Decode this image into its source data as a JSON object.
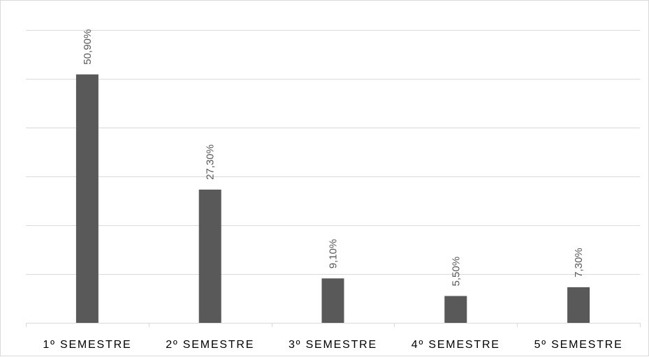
{
  "chart_data": {
    "type": "bar",
    "categories": [
      "1º SEMESTRE",
      "2º SEMESTRE",
      "3º SEMESTRE",
      "4º SEMESTRE",
      "5º SEMESTRE"
    ],
    "values": [
      50.9,
      27.3,
      9.1,
      5.5,
      7.3
    ],
    "data_labels": [
      "50,90%",
      "27,30%",
      "9,10%",
      "5,50%",
      "7,30%"
    ],
    "title": "",
    "xlabel": "",
    "ylabel": "",
    "ylim": [
      0,
      60
    ],
    "grid": true,
    "legend": "none",
    "y_axis_labels_shown": false,
    "colors": {
      "bar": "#595959",
      "grid": "#d9d9d9",
      "label": "#595959",
      "category_text": "#000000"
    }
  }
}
